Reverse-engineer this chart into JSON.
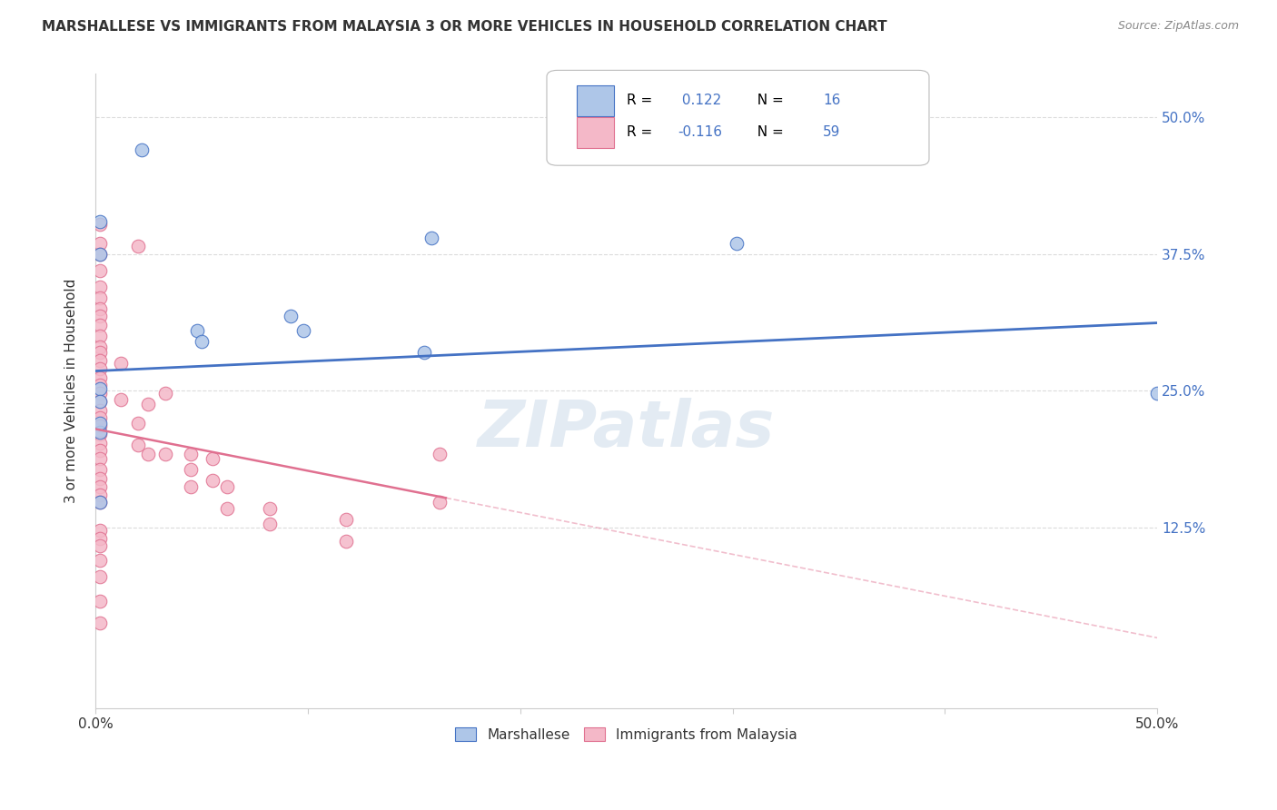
{
  "title": "MARSHALLESE VS IMMIGRANTS FROM MALAYSIA 3 OR MORE VEHICLES IN HOUSEHOLD CORRELATION CHART",
  "source": "Source: ZipAtlas.com",
  "ylabel": "3 or more Vehicles in Household",
  "xlim": [
    0,
    0.5
  ],
  "ylim": [
    -0.04,
    0.54
  ],
  "ytick_labels": [
    "12.5%",
    "25.0%",
    "37.5%",
    "50.0%"
  ],
  "ytick_positions": [
    0.125,
    0.25,
    0.375,
    0.5
  ],
  "legend_labels": [
    "Marshallese",
    "Immigrants from Malaysia"
  ],
  "R_blue": 0.122,
  "N_blue": 16,
  "R_pink": -0.116,
  "N_pink": 59,
  "blue_color": "#aec6e8",
  "pink_color": "#f4b8c8",
  "blue_line_color": "#4472c4",
  "pink_line_color": "#e07090",
  "blue_scatter": {
    "x": [
      0.022,
      0.002,
      0.002,
      0.048,
      0.05,
      0.092,
      0.098,
      0.155,
      0.158,
      0.302,
      0.002,
      0.002,
      0.002,
      0.5,
      0.002,
      0.002
    ],
    "y": [
      0.47,
      0.405,
      0.375,
      0.305,
      0.295,
      0.318,
      0.305,
      0.285,
      0.39,
      0.385,
      0.252,
      0.24,
      0.212,
      0.248,
      0.148,
      0.22
    ]
  },
  "pink_scatter": {
    "x": [
      0.002,
      0.002,
      0.002,
      0.002,
      0.002,
      0.002,
      0.002,
      0.002,
      0.002,
      0.002,
      0.002,
      0.002,
      0.002,
      0.002,
      0.002,
      0.002,
      0.002,
      0.002,
      0.002,
      0.002,
      0.002,
      0.002,
      0.002,
      0.002,
      0.002,
      0.002,
      0.002,
      0.002,
      0.002,
      0.002,
      0.002,
      0.002,
      0.002,
      0.002,
      0.002,
      0.012,
      0.012,
      0.02,
      0.02,
      0.02,
      0.025,
      0.025,
      0.033,
      0.033,
      0.045,
      0.045,
      0.045,
      0.055,
      0.055,
      0.062,
      0.062,
      0.082,
      0.082,
      0.118,
      0.118,
      0.162,
      0.162,
      0.002,
      0.002
    ],
    "y": [
      0.402,
      0.385,
      0.375,
      0.36,
      0.345,
      0.335,
      0.325,
      0.318,
      0.31,
      0.3,
      0.29,
      0.285,
      0.278,
      0.27,
      0.262,
      0.255,
      0.248,
      0.24,
      0.232,
      0.225,
      0.218,
      0.21,
      0.202,
      0.195,
      0.188,
      0.178,
      0.17,
      0.162,
      0.155,
      0.148,
      0.122,
      0.115,
      0.108,
      0.095,
      0.08,
      0.275,
      0.242,
      0.382,
      0.22,
      0.2,
      0.238,
      0.192,
      0.248,
      0.192,
      0.192,
      0.178,
      0.162,
      0.188,
      0.168,
      0.162,
      0.142,
      0.142,
      0.128,
      0.132,
      0.112,
      0.192,
      0.148,
      0.058,
      0.038
    ]
  },
  "background_color": "#ffffff",
  "grid_color": "#cccccc",
  "watermark": "ZIPatlas",
  "watermark_color": "#c8d8e8",
  "blue_line_start_y": 0.268,
  "blue_line_end_y": 0.312,
  "pink_line_start_y": 0.215,
  "pink_line_solid_end_x": 0.165,
  "pink_line_solid_end_y": 0.152
}
